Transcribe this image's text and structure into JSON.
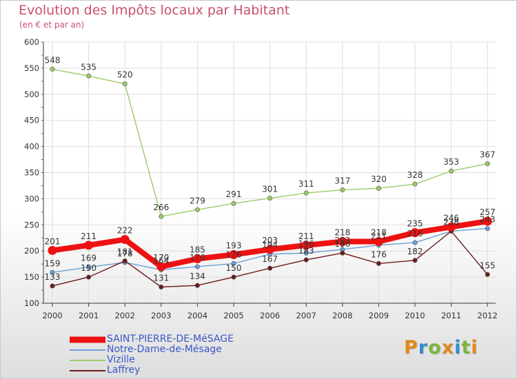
{
  "header": {
    "title": "Evolution des Impôts locaux par Habitant",
    "subtitle": "(en € et par an)"
  },
  "colors": {
    "text_title": "#c8506c",
    "legend_text": "#3a56c8",
    "axis": "#333333",
    "grid": "#dddddd"
  },
  "logo": {
    "text": "Proxiti",
    "letter_colors": [
      "#e08a1a",
      "#2e8fd0",
      "#7ab540",
      "#e08a1a",
      "#2e8fd0",
      "#7ab540",
      "#e08a1a"
    ]
  },
  "chart_data": {
    "type": "line",
    "title": "Evolution des Impôts locaux par Habitant",
    "subtitle": "(en € et par an)",
    "x": [
      "2000",
      "2001",
      "2002",
      "2003",
      "2004",
      "2005",
      "2006",
      "2007",
      "2008",
      "2009",
      "2010",
      "2011",
      "2012"
    ],
    "ylim": [
      100,
      600
    ],
    "yticks": [
      100,
      150,
      200,
      250,
      300,
      350,
      400,
      450,
      500,
      550,
      600
    ],
    "grid": true,
    "legend_position": "bottom-left",
    "series": [
      {
        "name": "SAINT-PIERRE-DE-MéSAGE",
        "color": "#ee1111",
        "emphasis": true,
        "values": [
          201,
          211,
          222,
          170,
          185,
          193,
          203,
          211,
          218,
          218,
          235,
          246,
          257
        ],
        "labels": [
          "201",
          "211",
          "222",
          "170",
          "185",
          "193",
          "203",
          "211",
          "218",
          "218",
          "235",
          "246",
          "257"
        ]
      },
      {
        "name": "Notre-Dame-de-Mésage",
        "color": "#6a9ed6",
        "emphasis": false,
        "values": [
          159,
          169,
          178,
          164,
          170,
          176,
          194,
          196,
          203,
          211,
          216,
          238,
          243
        ],
        "labels": [
          "159",
          "169",
          "178",
          "164",
          "170",
          "176",
          "194",
          "196",
          "203",
          "211",
          "216",
          "238",
          "243"
        ]
      },
      {
        "name": "Vizille",
        "color": "#99cc66",
        "emphasis": false,
        "values": [
          548,
          535,
          520,
          266,
          279,
          291,
          301,
          311,
          317,
          320,
          328,
          353,
          367
        ],
        "labels": [
          "548",
          "535",
          "520",
          "266",
          "279",
          "291",
          "301",
          "311",
          "317",
          "320",
          "328",
          "353",
          "367"
        ]
      },
      {
        "name": "Laffrey",
        "color": "#6b1a1a",
        "emphasis": false,
        "values": [
          133,
          150,
          181,
          131,
          134,
          150,
          167,
          183,
          196,
          176,
          182,
          238,
          155
        ],
        "labels": [
          "133",
          "150",
          "181",
          "131",
          "134",
          "150",
          "167",
          "183",
          "196",
          "176",
          "182",
          "238",
          "155"
        ]
      }
    ]
  }
}
